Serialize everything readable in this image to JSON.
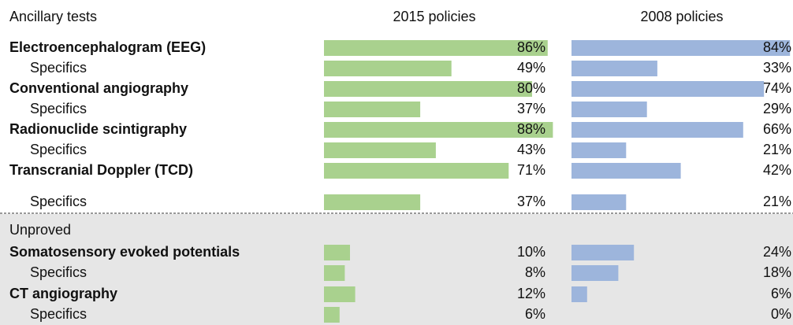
{
  "chart_data": {
    "type": "bar",
    "orientation": "horizontal",
    "title": "Ancillary tests",
    "categories": [
      "Electroencephalogram (EEG)",
      "Specifics",
      "Conventional angiography",
      "Specifics",
      "Radionuclide scintigraphy",
      "Specifics",
      "Transcranial Doppler (TCD)",
      "Specifics",
      "Somatosensory evoked potentials",
      "Specifics",
      "CT angiography",
      "Specifics"
    ],
    "bold": [
      true,
      false,
      true,
      false,
      true,
      false,
      true,
      false,
      true,
      false,
      true,
      false
    ],
    "section": {
      "label": "Unproved",
      "first_category": 8
    },
    "xlim": [
      0,
      100
    ],
    "series": [
      {
        "name": "2015 policies",
        "color": "#a9d18e",
        "values": [
          86,
          49,
          80,
          37,
          88,
          43,
          71,
          37,
          10,
          8,
          12,
          6
        ],
        "value_labels": [
          "86%",
          "49%",
          "80%",
          "37%",
          "88%",
          "43%",
          "71%",
          "37%",
          "10%",
          "8%",
          "12%",
          "6%"
        ]
      },
      {
        "name": "2008 policies",
        "color": "#9db5dc",
        "values": [
          84,
          33,
          74,
          29,
          66,
          21,
          42,
          21,
          24,
          18,
          6,
          0
        ],
        "value_labels": [
          "84%",
          "33%",
          "74%",
          "29%",
          "66%",
          "21%",
          "42%",
          "21%",
          "24%",
          "18%",
          "6%",
          "0%"
        ]
      }
    ]
  }
}
